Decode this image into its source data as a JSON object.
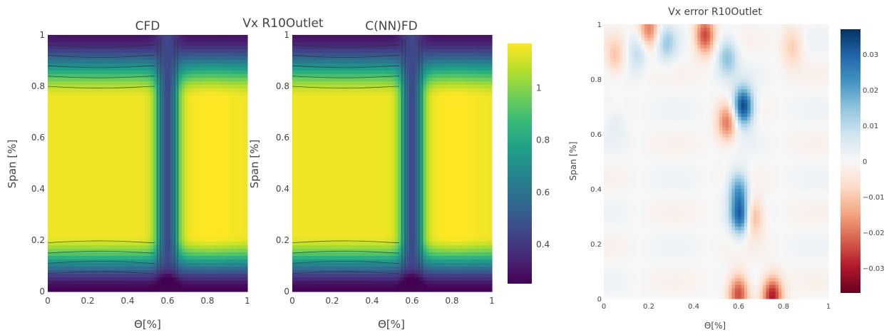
{
  "figure": {
    "title": "Vx R10Outlet",
    "right_title": "Vx error R10Outlet"
  },
  "chart_data": [
    {
      "type": "heatmap",
      "title": "CFD",
      "xlabel": "Θ[%]",
      "ylabel": "Span [%]",
      "xlim": [
        0,
        1
      ],
      "ylim": [
        0,
        1
      ],
      "x_ticks": [
        "0",
        "0.2",
        "0.4",
        "0.6",
        "0.8",
        "1"
      ],
      "y_ticks": [
        "0",
        "0.2",
        "0.4",
        "0.6",
        "0.8",
        "1"
      ],
      "colorscale": "Viridis",
      "contours": true,
      "features": {
        "core_value": 1.15,
        "core_theta_range": [
          0.0,
          0.5
        ],
        "core_span_range": [
          0.2,
          0.75
        ],
        "right_core_theta_range": [
          0.68,
          1.0
        ],
        "right_core_span_range": [
          0.2,
          0.75
        ],
        "wake_theta": 0.6,
        "wake_value": 0.45,
        "hub_value": 0.25,
        "tip_value": 0.3
      }
    },
    {
      "type": "heatmap",
      "title": "C(NN)FD",
      "xlabel": "Θ[%]",
      "ylabel": "Span [%]",
      "xlim": [
        0,
        1
      ],
      "ylim": [
        0,
        1
      ],
      "x_ticks": [
        "0",
        "0.2",
        "0.4",
        "0.6",
        "0.8",
        "1"
      ],
      "y_ticks": [
        "0",
        "0.2",
        "0.4",
        "0.6",
        "0.8",
        "1"
      ],
      "colorscale": "Viridis",
      "contours": true,
      "features": {
        "core_value": 1.15,
        "core_theta_range": [
          0.0,
          0.5
        ],
        "core_span_range": [
          0.2,
          0.75
        ],
        "right_core_theta_range": [
          0.68,
          1.0
        ],
        "right_core_span_range": [
          0.2,
          0.75
        ],
        "wake_theta": 0.6,
        "wake_value": 0.45,
        "hub_value": 0.25,
        "tip_value": 0.3
      }
    },
    {
      "type": "colorbar",
      "range": [
        0.25,
        1.17
      ],
      "ticks": [
        {
          "value": 1,
          "label": "1"
        },
        {
          "value": 0.8,
          "label": "0.8"
        },
        {
          "value": 0.6,
          "label": "0.6"
        },
        {
          "value": 0.4,
          "label": "0.4"
        }
      ],
      "colors": [
        "#440154",
        "#482878",
        "#3e4989",
        "#31688e",
        "#26828e",
        "#1f9e89",
        "#35b779",
        "#6ece58",
        "#b5de2b",
        "#fde725"
      ]
    },
    {
      "type": "heatmap",
      "title": "Vx error R10Outlet",
      "xlabel": "Θ[%]",
      "ylabel": "Span [%]",
      "xlim": [
        0,
        1
      ],
      "ylim": [
        0,
        1
      ],
      "x_ticks": [
        "0",
        "0.2",
        "0.4",
        "0.6",
        "0.8",
        "1"
      ],
      "y_ticks": [
        "0",
        "0.2",
        "0.4",
        "0.6",
        "0.8",
        "1"
      ],
      "colorscale": "RdBu",
      "zlim": [
        -0.037,
        0.037
      ],
      "colorbar_ticks": [
        {
          "value": 0.03,
          "label": "0.03"
        },
        {
          "value": 0.02,
          "label": "0.02"
        },
        {
          "value": 0.01,
          "label": "0.01"
        },
        {
          "value": 0,
          "label": "0"
        },
        {
          "value": -0.01,
          "label": "−0.01"
        },
        {
          "value": -0.02,
          "label": "−0.02"
        },
        {
          "value": -0.03,
          "label": "−0.03"
        }
      ],
      "colorbar_colors": [
        "#67001f",
        "#b2182b",
        "#d6604d",
        "#f4a582",
        "#fddbc7",
        "#f7f7f7",
        "#d1e5f0",
        "#92c5de",
        "#4393c3",
        "#2166ac",
        "#053061"
      ],
      "features": [
        {
          "theta": 0.62,
          "span": 0.7,
          "value": 0.036
        },
        {
          "theta": 0.6,
          "span": 0.4,
          "value": 0.02
        },
        {
          "theta": 0.61,
          "span": 0.3,
          "value": 0.03
        },
        {
          "theta": 0.55,
          "span": 0.64,
          "value": -0.02
        },
        {
          "theta": 0.66,
          "span": 0.3,
          "value": -0.018
        },
        {
          "theta": 0.75,
          "span": 0.01,
          "value": -0.03
        },
        {
          "theta": 0.6,
          "span": 0.02,
          "value": -0.025
        },
        {
          "theta": 0.45,
          "span": 0.96,
          "value": -0.025
        },
        {
          "theta": 0.2,
          "span": 0.98,
          "value": -0.02
        },
        {
          "theta": 0.28,
          "span": 0.93,
          "value": 0.012
        },
        {
          "theta": 0.15,
          "span": 0.9,
          "value": 0.01
        },
        {
          "theta": 0.84,
          "span": 0.92,
          "value": -0.01
        },
        {
          "theta": 0.05,
          "span": 0.88,
          "value": -0.01
        },
        {
          "theta": 0.55,
          "span": 0.88,
          "value": 0.015
        },
        {
          "theta": 0.05,
          "span": 0.65,
          "value": 0.004
        }
      ]
    }
  ]
}
